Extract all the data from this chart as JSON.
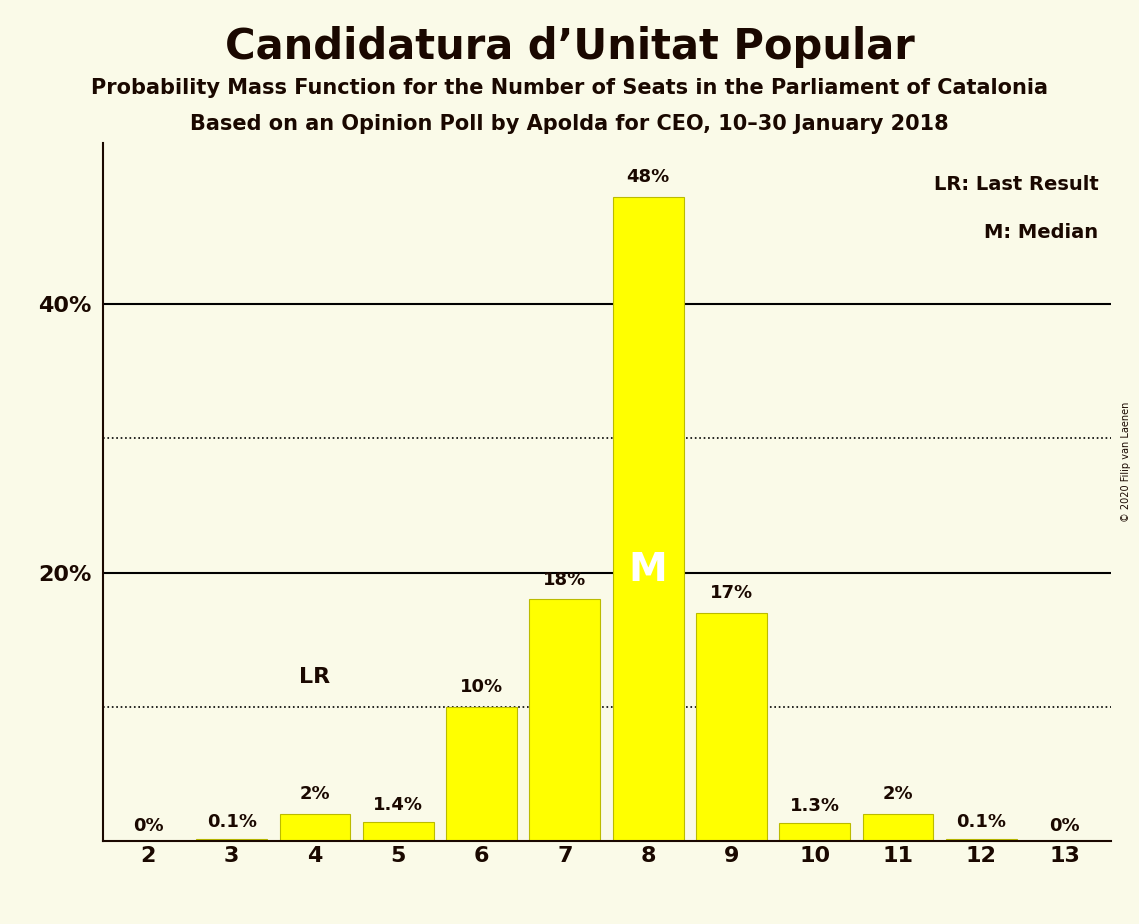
{
  "title": "Candidatura d’Unitat Popular",
  "subtitle1": "Probability Mass Function for the Number of Seats in the Parliament of Catalonia",
  "subtitle2": "Based on an Opinion Poll by Apolda for CEO, 10–30 January 2018",
  "copyright": "© 2020 Filip van Laenen",
  "categories": [
    2,
    3,
    4,
    5,
    6,
    7,
    8,
    9,
    10,
    11,
    12,
    13
  ],
  "values": [
    0.0,
    0.1,
    2.0,
    1.4,
    10.0,
    18.0,
    48.0,
    17.0,
    1.3,
    2.0,
    0.1,
    0.0
  ],
  "labels": [
    "0%",
    "0.1%",
    "2%",
    "1.4%",
    "10%",
    "18%",
    "48%",
    "17%",
    "1.3%",
    "2%",
    "0.1%",
    "0%"
  ],
  "bar_color": "#FFFF00",
  "bar_edge_color": "#BBBB00",
  "background_color": "#FAFAE8",
  "text_color": "#1a0800",
  "median_seat": 8,
  "lr_seat": 4,
  "solid_gridlines": [
    20,
    40
  ],
  "dotted_gridlines": [
    10,
    30
  ],
  "ylim": [
    0,
    52
  ],
  "yticks": [
    20,
    40
  ],
  "ytick_labels": [
    "20%",
    "40%"
  ],
  "legend_text": [
    "LR: Last Result",
    "M: Median"
  ],
  "label_fontsize": 13,
  "tick_fontsize": 16,
  "title_fontsize": 30,
  "subtitle_fontsize": 15
}
